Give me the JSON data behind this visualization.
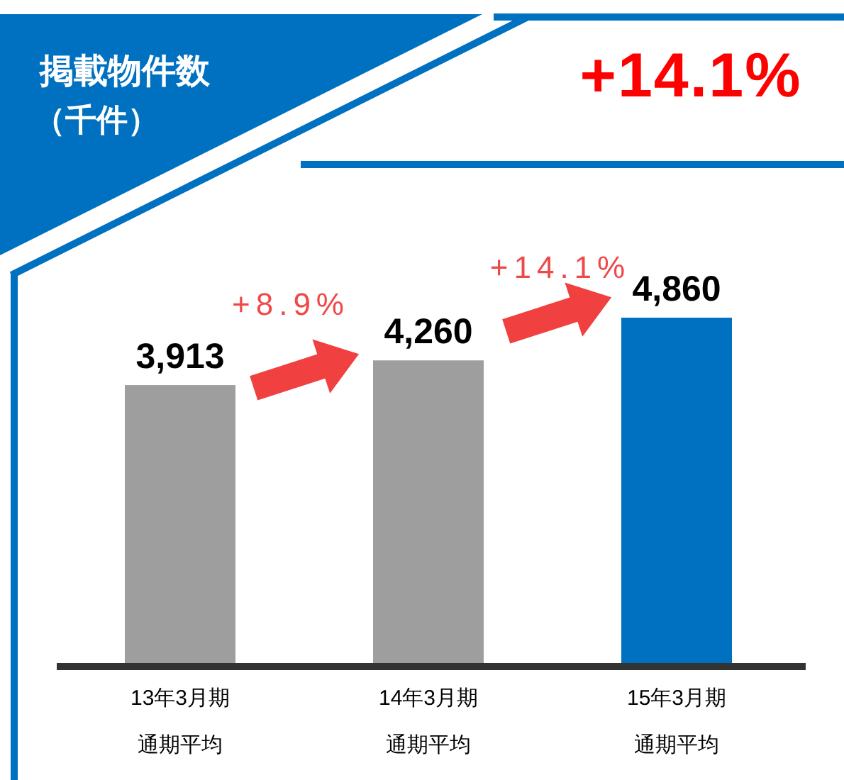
{
  "chart_data": {
    "type": "bar",
    "title": "掲載物件数",
    "subtitle": "（千件）",
    "categories": [
      "13年3月期通期平均",
      "14年3月期通期平均",
      "15年3月期通期平均"
    ],
    "values": [
      3913,
      4260,
      4860
    ],
    "colors": [
      "#9e9e9e",
      "#9e9e9e",
      "#0070c0"
    ],
    "value_labels": [
      "3,913",
      "4,260",
      "4,860"
    ],
    "annotations": [
      "+14.1%",
      "+8.9%",
      "+14.1%"
    ]
  }
}
